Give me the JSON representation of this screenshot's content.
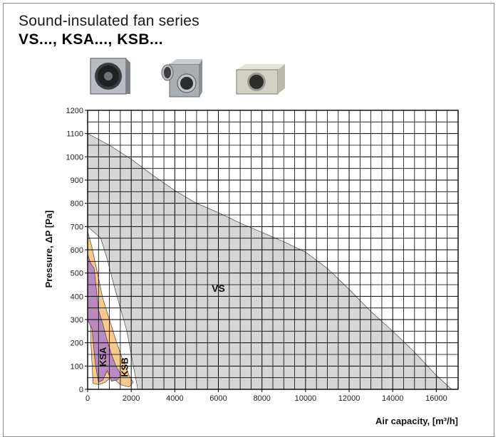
{
  "header": {
    "title": "Sound-insulated fan series",
    "subtitle": "VS..., KSA..., KSB..."
  },
  "products": [
    {
      "icon": "square-duct-fan-icon"
    },
    {
      "icon": "compact-duct-fan-icon"
    },
    {
      "icon": "flat-duct-fan-icon"
    }
  ],
  "chart_data": {
    "type": "area",
    "title": "",
    "xlabel": "Air capacity, [m³/h]",
    "ylabel": "Pressure, ΔP [Pa]",
    "xlim": [
      0,
      17000
    ],
    "ylim": [
      0,
      1200
    ],
    "x_ticks": [
      0,
      2000,
      4000,
      6000,
      8000,
      10000,
      12000,
      14000,
      16000
    ],
    "y_ticks": [
      0,
      100,
      200,
      300,
      400,
      500,
      600,
      700,
      800,
      900,
      1000,
      1100,
      1200
    ],
    "grid": true,
    "series": [
      {
        "name": "VS",
        "color": "#d6d6d6",
        "points": [
          [
            0,
            1100
          ],
          [
            1000,
            1050
          ],
          [
            2000,
            990
          ],
          [
            3000,
            920
          ],
          [
            4000,
            855
          ],
          [
            5000,
            800
          ],
          [
            6000,
            760
          ],
          [
            7000,
            715
          ],
          [
            8000,
            675
          ],
          [
            9000,
            635
          ],
          [
            10000,
            590
          ],
          [
            11000,
            520
          ],
          [
            12000,
            430
          ],
          [
            13000,
            335
          ],
          [
            14000,
            250
          ],
          [
            15000,
            160
          ],
          [
            16000,
            60
          ],
          [
            16700,
            0
          ],
          [
            2300,
            0
          ],
          [
            2100,
            100
          ],
          [
            1800,
            250
          ],
          [
            1200,
            450
          ],
          [
            900,
            560
          ],
          [
            600,
            650
          ],
          [
            0,
            700
          ]
        ]
      },
      {
        "name": "KSB",
        "color": "#f7c98f",
        "points": [
          [
            0,
            680
          ],
          [
            200,
            610
          ],
          [
            450,
            500
          ],
          [
            700,
            390
          ],
          [
            1000,
            300
          ],
          [
            1300,
            210
          ],
          [
            1600,
            130
          ],
          [
            1900,
            60
          ],
          [
            2100,
            30
          ],
          [
            1900,
            10
          ],
          [
            1500,
            20
          ],
          [
            1100,
            55
          ],
          [
            800,
            30
          ],
          [
            500,
            20
          ],
          [
            250,
            25
          ],
          [
            150,
            200
          ],
          [
            100,
            350
          ],
          [
            0,
            450
          ]
        ]
      },
      {
        "name": "KSA",
        "color": "#b88ac0",
        "points": [
          [
            0,
            580
          ],
          [
            150,
            540
          ],
          [
            300,
            520
          ],
          [
            400,
            430
          ],
          [
            500,
            340
          ],
          [
            700,
            280
          ],
          [
            900,
            210
          ],
          [
            1100,
            150
          ],
          [
            1300,
            100
          ],
          [
            1550,
            60
          ],
          [
            1350,
            40
          ],
          [
            1100,
            35
          ],
          [
            900,
            80
          ],
          [
            700,
            40
          ],
          [
            500,
            30
          ],
          [
            350,
            110
          ],
          [
            200,
            260
          ],
          [
            0,
            300
          ]
        ]
      }
    ],
    "series_labels": [
      {
        "name": "VS",
        "x": 6000,
        "y": 420
      },
      {
        "name": "KSA",
        "x": 850,
        "y": 140
      },
      {
        "name": "KSB",
        "x": 1850,
        "y": 95
      }
    ]
  }
}
